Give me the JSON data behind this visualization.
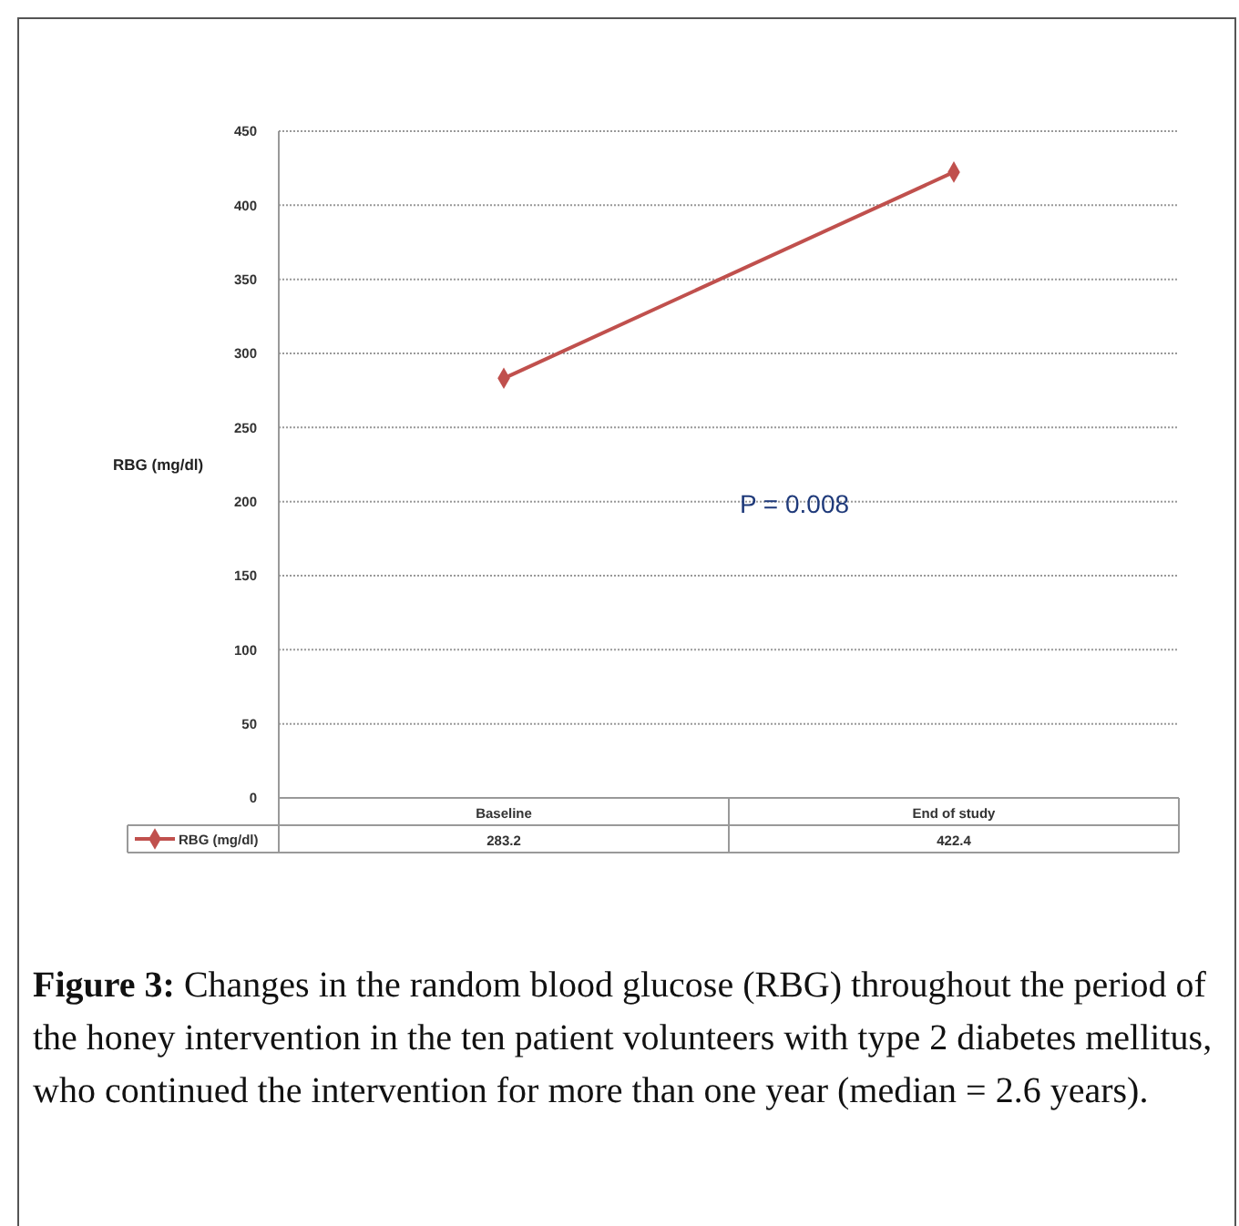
{
  "chart_data": {
    "type": "line",
    "ylabel": "RBG (mg/dl)",
    "categories": [
      "Baseline",
      "End of study"
    ],
    "series": [
      {
        "name": "RBG (mg/dl)",
        "color": "#c0504d",
        "values": [
          283.2,
          422.4
        ]
      }
    ],
    "ylim": [
      0,
      450
    ],
    "yticks": [
      0,
      50,
      100,
      150,
      200,
      250,
      300,
      350,
      400,
      450
    ],
    "grid": "y",
    "marker": "diamond",
    "data_labels": true,
    "legend": "bottom",
    "annotations": [
      "P = 0.008",
      "Figure 3: Changes in the random blood glucose (RBG) throughout the period of the honey intervention in the ten patient volunteers with type 2 diabetes mellitus, who continued the intervention for more than one year (median = 2.6 years)."
    ]
  }
}
